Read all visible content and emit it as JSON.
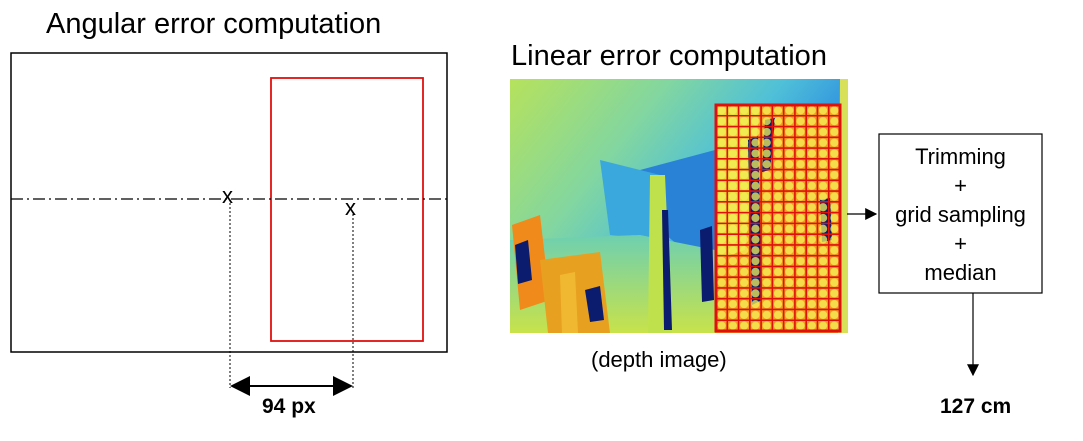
{
  "angular": {
    "title": "Angular error computation",
    "marker": "x",
    "distance_label": "94 px"
  },
  "linear": {
    "title": "Linear error computation",
    "caption": "(depth image)",
    "grid": {
      "columns": 11,
      "rows": 21
    }
  },
  "process_box": {
    "lines": [
      "Trimming",
      "+",
      "grid sampling",
      "+",
      "median"
    ]
  },
  "result": "127 cm",
  "colors": {
    "bounding_box": "#e01010",
    "grid_frame": "#e01010",
    "grid_dot": "#f6f05a",
    "depth_far": "#1e7bd8",
    "depth_mid": "#86d98a",
    "depth_near": "#e8e43a",
    "depth_nearest": "#f08a1a",
    "depth_invalid": "#0b1b6e"
  }
}
